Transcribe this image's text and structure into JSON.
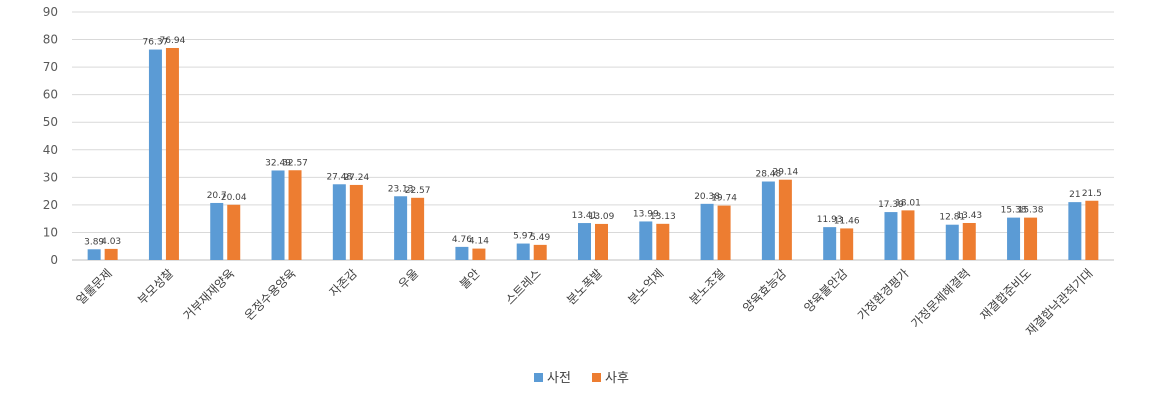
{
  "chart_data": {
    "type": "bar",
    "title": "",
    "xlabel": "",
    "ylabel": "",
    "ylim": [
      0,
      90
    ],
    "yticks": [
      0,
      10,
      20,
      30,
      40,
      50,
      60,
      70,
      80,
      90
    ],
    "grid": true,
    "legend_position": "bottom",
    "categories": [
      "얼룰문제",
      "부모성찰",
      "거부재재양육",
      "온정수용양육",
      "자존감",
      "우울",
      "불안",
      "스트레스",
      "분노폭발",
      "분노억제",
      "분노조절",
      "양육효능감",
      "양육불안감",
      "가정환경평가",
      "가정문제해결력",
      "재결합준비도",
      "재결합낙관적기대"
    ],
    "series": [
      {
        "name": "사전",
        "color": "#5B9BD5",
        "values": [
          3.89,
          76.37,
          20.7,
          32.49,
          27.48,
          23.13,
          4.76,
          5.97,
          13.41,
          13.99,
          20.38,
          28.48,
          11.93,
          17.39,
          12.81,
          15.38,
          21
        ],
        "labels": [
          "3.89",
          "76.37",
          "20.7",
          "32.49",
          "27.48",
          "23.13",
          "4.76",
          "5.97",
          "13.41",
          "13.99",
          "20.38",
          "28.48",
          "11.93",
          "17.39",
          "12.81",
          "15.38",
          "21"
        ]
      },
      {
        "name": "사후",
        "color": "#ED7D31",
        "values": [
          4.03,
          76.94,
          20.04,
          32.57,
          27.24,
          22.57,
          4.14,
          5.49,
          13.09,
          13.13,
          19.74,
          29.14,
          11.46,
          18.01,
          13.43,
          15.38,
          21.5
        ],
        "labels": [
          "4.03",
          "76.94",
          "20.04",
          "32.57",
          "27.24",
          "22.57",
          "4.14",
          "5.49",
          "13.09",
          "13.13",
          "19.74",
          "29.14",
          "11.46",
          "18.01",
          "13.43",
          "15.38",
          "21.5"
        ]
      }
    ]
  }
}
